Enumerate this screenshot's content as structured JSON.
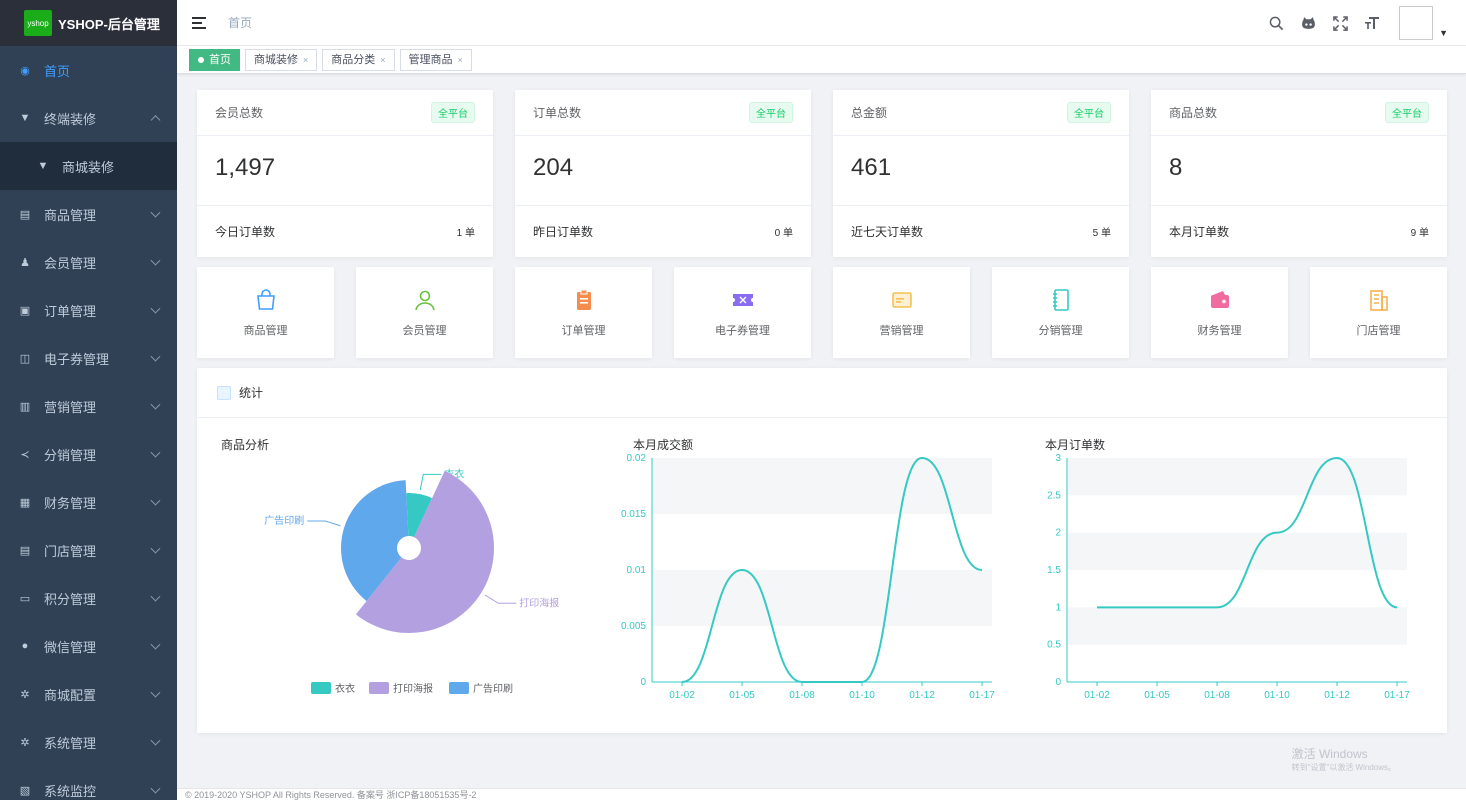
{
  "app": {
    "logo_text": "yshop",
    "title": "YSHOP-后台管理"
  },
  "sidebar": {
    "items": [
      {
        "label": "首页",
        "icon": "dashboard-icon",
        "active": true
      },
      {
        "label": "终端装修",
        "icon": "shirt-icon",
        "expanded": true
      },
      {
        "label": "商城装修",
        "icon": "shirt-icon",
        "sub": true
      },
      {
        "label": "商品管理",
        "icon": "goods-icon"
      },
      {
        "label": "会员管理",
        "icon": "user-icon"
      },
      {
        "label": "订单管理",
        "icon": "lock-icon"
      },
      {
        "label": "电子券管理",
        "icon": "chart-icon"
      },
      {
        "label": "营销管理",
        "icon": "bar-icon"
      },
      {
        "label": "分销管理",
        "icon": "share-icon"
      },
      {
        "label": "财务管理",
        "icon": "finance-icon"
      },
      {
        "label": "门店管理",
        "icon": "store-icon"
      },
      {
        "label": "积分管理",
        "icon": "points-icon"
      },
      {
        "label": "微信管理",
        "icon": "wechat-icon"
      },
      {
        "label": "商城配置",
        "icon": "gear-icon"
      },
      {
        "label": "系统管理",
        "icon": "gear-icon"
      },
      {
        "label": "系统监控",
        "icon": "monitor-icon"
      }
    ]
  },
  "navbar": {
    "breadcrumb": "首页"
  },
  "tags": [
    {
      "label": "首页",
      "active": true
    },
    {
      "label": "商城装修"
    },
    {
      "label": "商品分类"
    },
    {
      "label": "管理商品"
    }
  ],
  "stats": [
    {
      "title": "会员总数",
      "badge": "全平台",
      "value": "1,497",
      "foot_label": "今日订单数",
      "foot_value": "1 单"
    },
    {
      "title": "订单总数",
      "badge": "全平台",
      "value": "204",
      "foot_label": "昨日订单数",
      "foot_value": "0 单"
    },
    {
      "title": "总金额",
      "badge": "全平台",
      "value": "461",
      "foot_label": "近七天订单数",
      "foot_value": "5 单"
    },
    {
      "title": "商品总数",
      "badge": "全平台",
      "value": "8",
      "foot_label": "本月订单数",
      "foot_value": "9 单"
    }
  ],
  "quick_links": [
    {
      "label": "商品管理",
      "icon": "bag-icon",
      "color": "#409eff"
    },
    {
      "label": "会员管理",
      "icon": "person-icon",
      "color": "#67c23a"
    },
    {
      "label": "订单管理",
      "icon": "clipboard-icon",
      "color": "#f58d4f"
    },
    {
      "label": "电子券管理",
      "icon": "ticket-icon",
      "color": "#8a6cf0"
    },
    {
      "label": "营销管理",
      "icon": "card-icon",
      "color": "#f5c14f"
    },
    {
      "label": "分销管理",
      "icon": "notebook-icon",
      "color": "#36c9c4"
    },
    {
      "label": "财务管理",
      "icon": "wallet-icon",
      "color": "#f06ca0"
    },
    {
      "label": "门店管理",
      "icon": "building-icon",
      "color": "#f5b14f"
    }
  ],
  "statistics": {
    "title": "统计"
  },
  "chart_data": [
    {
      "type": "pie",
      "title": "商品分析",
      "series": [
        {
          "name": "衣衣",
          "value": 1,
          "color": "#36c9c4"
        },
        {
          "name": "打印海报",
          "value": 7,
          "color": "#b3a0e0"
        },
        {
          "name": "广告印刷",
          "value": 5,
          "color": "#5fa8ec"
        }
      ],
      "legend_position": "bottom"
    },
    {
      "type": "line",
      "title": "本月成交额",
      "x": [
        "01-02",
        "01-05",
        "01-08",
        "01-10",
        "01-12",
        "01-17"
      ],
      "values": [
        0,
        0.01,
        0,
        0,
        0.02,
        0.01
      ],
      "ylim": [
        0,
        0.02
      ],
      "yticks": [
        "0",
        "0.005",
        "0.01",
        "0.015",
        "0.02"
      ],
      "color": "#36c9c4"
    },
    {
      "type": "line",
      "title": "本月订单数",
      "x": [
        "01-02",
        "01-05",
        "01-08",
        "01-10",
        "01-12",
        "01-17"
      ],
      "values": [
        1,
        1,
        1,
        2,
        3,
        1
      ],
      "ylim": [
        0,
        3
      ],
      "yticks": [
        "0",
        "0.5",
        "1",
        "1.5",
        "2",
        "2.5",
        "3"
      ],
      "color": "#36c9c4"
    }
  ],
  "watermark": {
    "line1": "激活 Windows",
    "line2": "转到\"设置\"以激活 Windows。"
  },
  "footer": {
    "text": "© 2019-2020 YSHOP All Rights Reserved. 备案号 浙ICP备18051535号-2"
  }
}
